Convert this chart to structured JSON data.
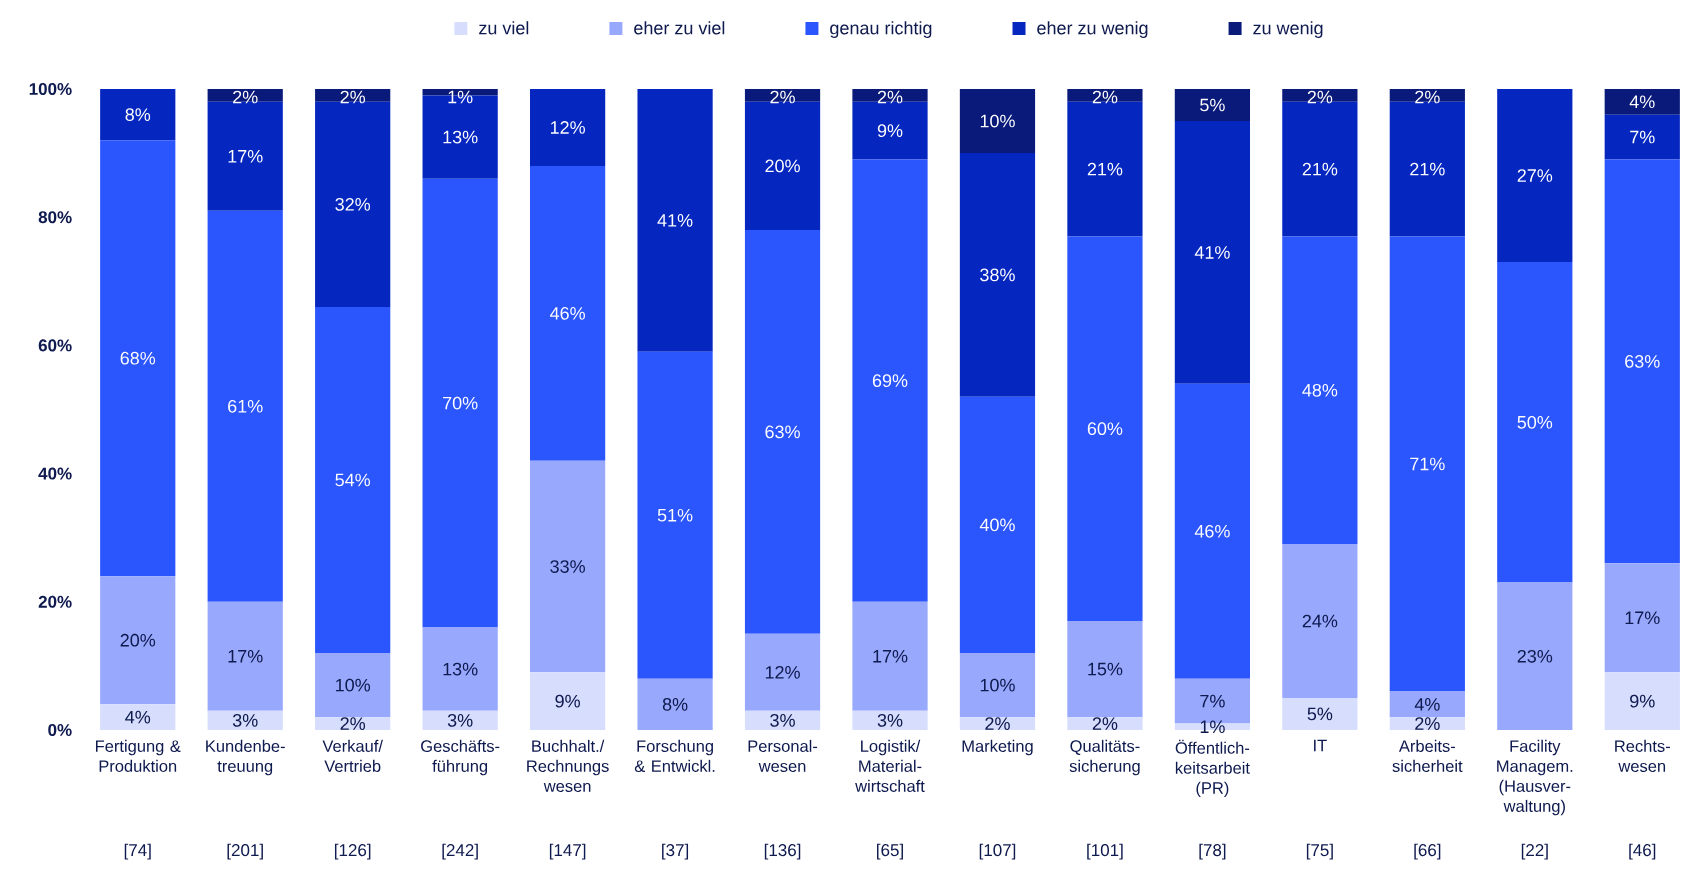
{
  "chart_data": {
    "type": "bar",
    "stacked": true,
    "legend": "top",
    "categories": [
      "Fertigung & Produktion",
      "Kundenbe-treuung",
      "Verkauf/ Vertrieb",
      "Geschäfts-führung",
      "Buchhalt./ Rechnungs wesen",
      "Forschung & Entwickl.",
      "Personal-wesen",
      "Logistik/ Material-wirtschaft",
      "Marketing",
      "Qualitäts-sicherung",
      "Öffentlich-keitsarbeit (PR)",
      "IT",
      "Arbeits-sicherheit",
      "Facility Managem. (Hausver-waltung)",
      "Rechts-wesen"
    ],
    "series": [
      {
        "name": "zu viel",
        "color": "#d6ddfd",
        "values": [
          4,
          3,
          2,
          3,
          9,
          0,
          3,
          3,
          2,
          2,
          1,
          5,
          2,
          0,
          9
        ],
        "value_labels": [
          "4%",
          "3%",
          "2%",
          "3%",
          "9%",
          null,
          "3%",
          "3%",
          "2%",
          "2%",
          "1%",
          "5%",
          "2%",
          null,
          "9%"
        ]
      },
      {
        "name": "eher zu viel",
        "color": "#98a9fd",
        "values": [
          20,
          17,
          10,
          13,
          33,
          8,
          12,
          17,
          10,
          15,
          7,
          24,
          4,
          23,
          17
        ],
        "value_labels": [
          "20%",
          "17%",
          "10%",
          "13%",
          "33%",
          "8%",
          "12%",
          "17%",
          "10%",
          "15%",
          "7%",
          "24%",
          "4%",
          "23%",
          "17%"
        ]
      },
      {
        "name": "genau richtig",
        "color": "#2b55fd",
        "values": [
          68,
          61,
          54,
          70,
          46,
          51,
          63,
          69,
          40,
          60,
          46,
          48,
          71,
          50,
          63
        ],
        "value_labels": [
          "68%",
          "61%",
          "54%",
          "70%",
          "46%",
          "51%",
          "63%",
          "69%",
          "40%",
          "60%",
          "46%",
          "48%",
          "71%",
          "50%",
          "63%"
        ]
      },
      {
        "name": "eher zu wenig",
        "color": "#0527c0",
        "values": [
          8,
          17,
          32,
          13,
          12,
          41,
          20,
          9,
          38,
          21,
          41,
          21,
          21,
          27,
          7
        ],
        "value_labels": [
          "8%",
          "17%",
          "32%",
          "13%",
          "12%",
          "41%",
          "20%",
          "9%",
          "38%",
          "21%",
          "41%",
          "21%",
          "21%",
          "27%",
          "7%"
        ]
      },
      {
        "name": "zu wenig",
        "color": "#0a1a7a",
        "values": [
          0,
          2,
          2,
          1,
          0,
          0,
          2,
          2,
          10,
          2,
          5,
          2,
          2,
          0,
          4
        ],
        "value_labels": [
          null,
          "2%",
          "2%",
          "1%",
          null,
          null,
          "2%",
          "2%",
          "10%",
          "2%",
          "5%",
          "2%",
          "2%",
          null,
          "4%"
        ]
      }
    ],
    "ylim": [
      0,
      100
    ],
    "yticks": [
      {
        "value": 0,
        "label": "0%"
      },
      {
        "value": 20,
        "label": "20%"
      },
      {
        "value": 40,
        "label": "40%"
      },
      {
        "value": 60,
        "label": "60%"
      },
      {
        "value": 80,
        "label": "80%"
      },
      {
        "value": 100,
        "label": "100%"
      }
    ],
    "annotations": [
      "[74]",
      "[201]",
      "[126]",
      "[242]",
      "[147]",
      "[37]",
      "[136]",
      "[65]",
      "[107]",
      "[101]",
      "[78]",
      "[75]",
      "[66]",
      "[22]",
      "[46]"
    ]
  }
}
